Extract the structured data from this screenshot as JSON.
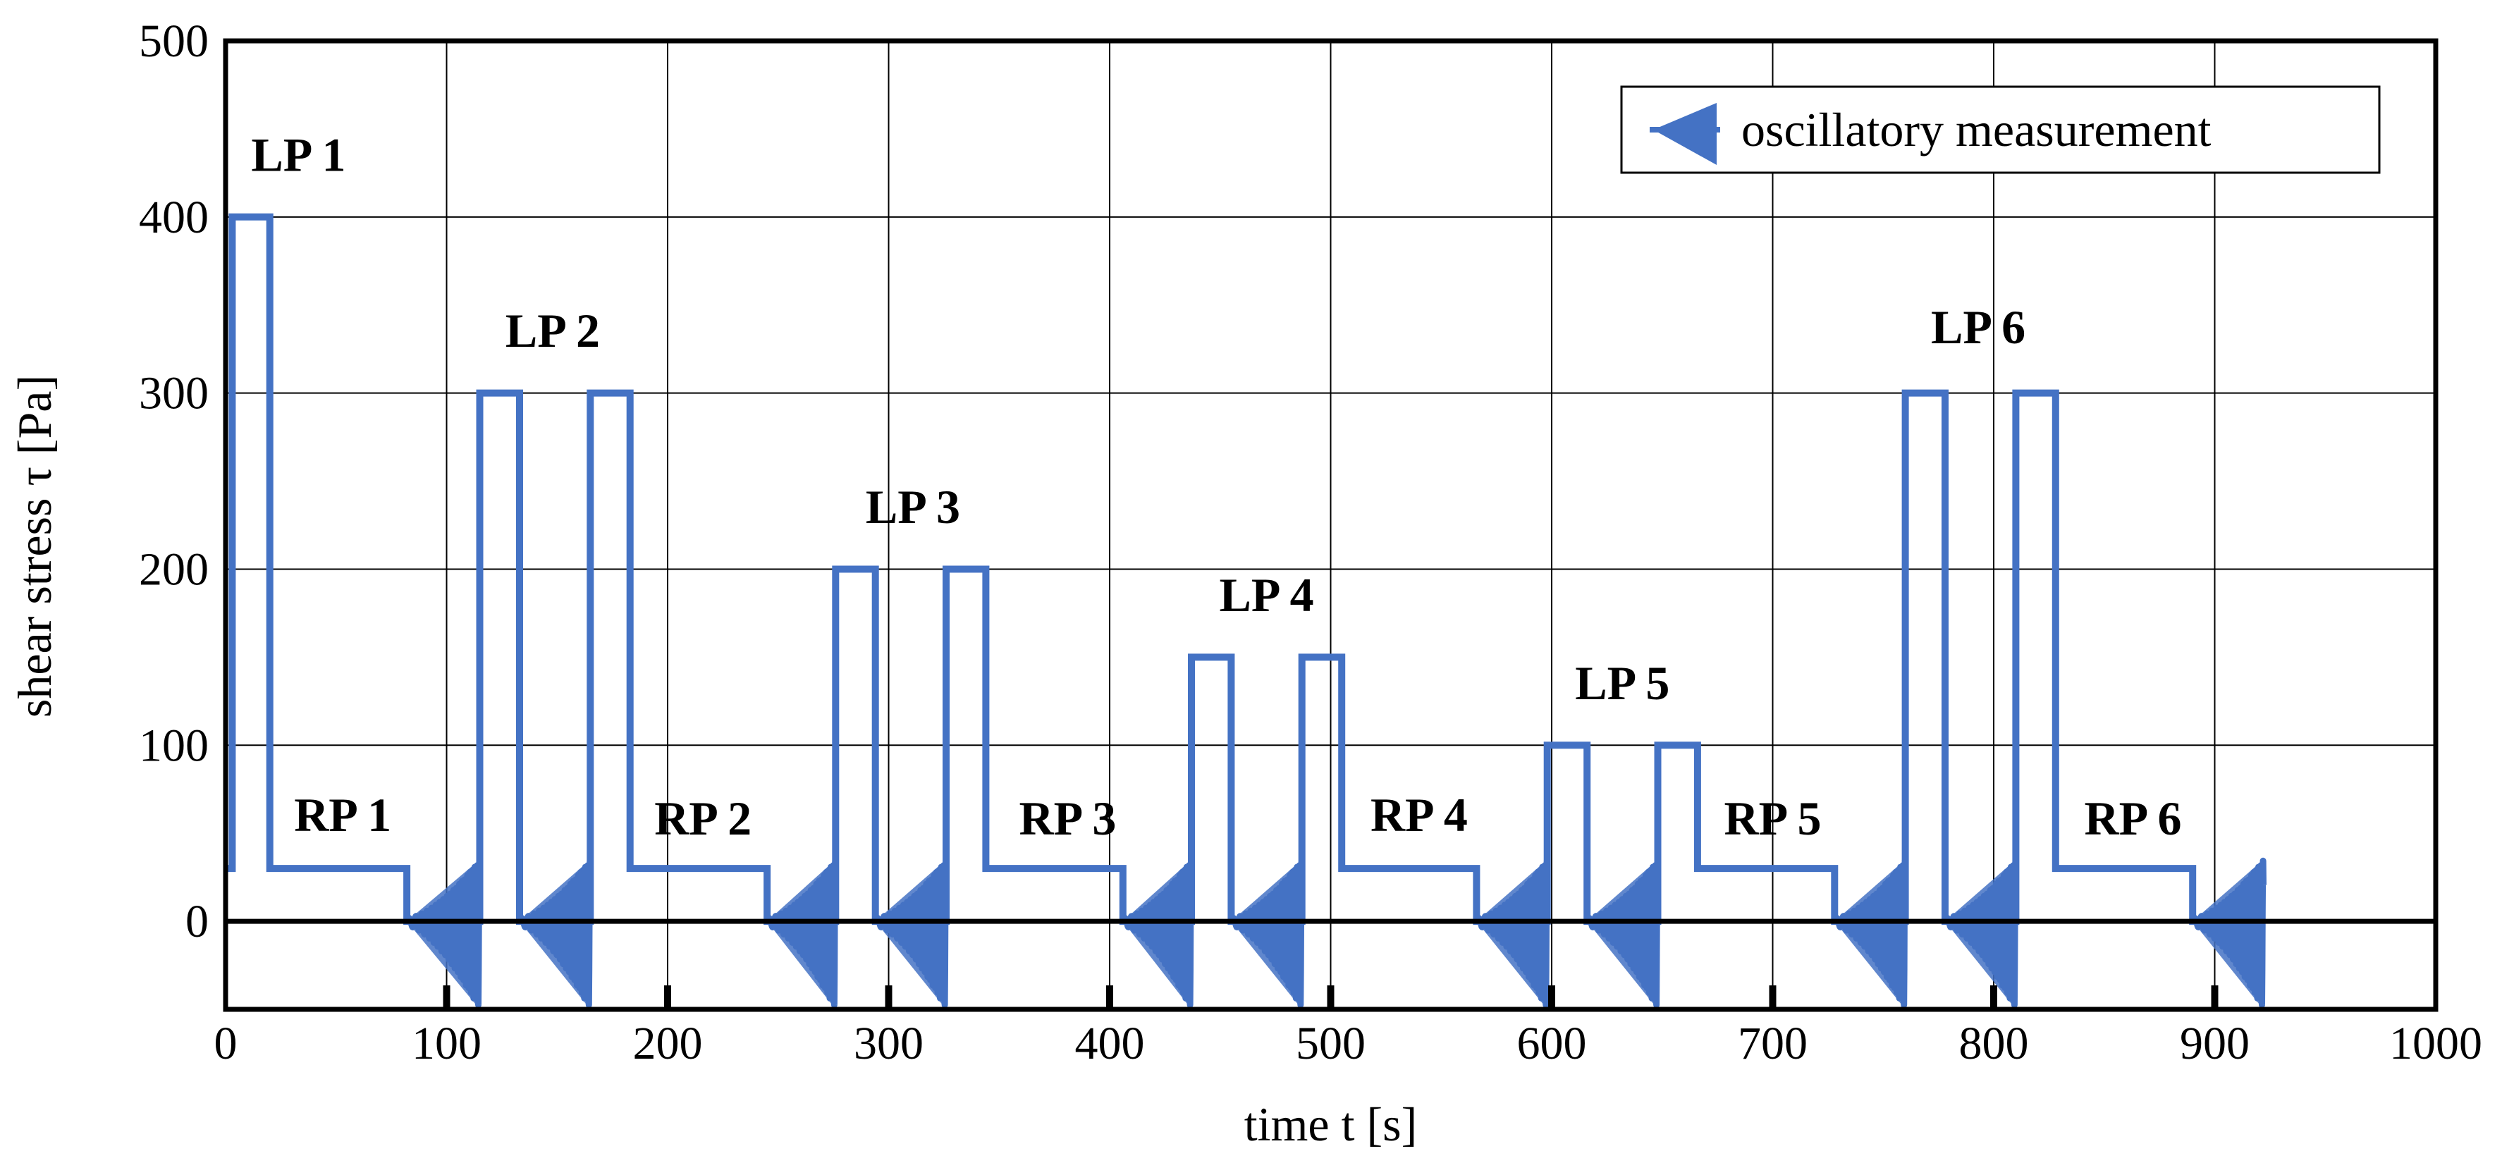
{
  "chart_data": {
    "type": "line",
    "title": "",
    "xlabel": "time t [s]",
    "ylabel": "shear stress τ [Pa]",
    "xlim": [
      0,
      1000
    ],
    "ylim": [
      -50,
      500
    ],
    "xticks": [
      0,
      100,
      200,
      300,
      400,
      500,
      600,
      700,
      800,
      900,
      1000
    ],
    "yticks": [
      0,
      100,
      200,
      300,
      400,
      500
    ],
    "grid": true,
    "legend": {
      "position": "top-right",
      "entries": [
        "oscillatory measurement"
      ]
    },
    "colors": {
      "series": "#4472C4",
      "axis": "#000000",
      "grid": "#000000"
    },
    "series": [
      {
        "name": "shear stress",
        "x": [
          0,
          3,
          3,
          20,
          20,
          82,
          82,
          115,
          115,
          133,
          133,
          165,
          165,
          183,
          183,
          245,
          245,
          276,
          276,
          294,
          294,
          326,
          326,
          344,
          344,
          406,
          406,
          437,
          437,
          455,
          455,
          487,
          487,
          505,
          505,
          566,
          566,
          598,
          598,
          616,
          616,
          648,
          648,
          666,
          666,
          728,
          728,
          760,
          760,
          778,
          778,
          810,
          810,
          828,
          828,
          890,
          890,
          922
        ],
        "y": [
          30,
          30,
          400,
          400,
          30,
          30,
          0,
          0,
          300,
          300,
          0,
          0,
          300,
          300,
          30,
          30,
          0,
          0,
          200,
          200,
          0,
          0,
          200,
          200,
          30,
          30,
          0,
          0,
          150,
          150,
          0,
          0,
          150,
          150,
          30,
          30,
          0,
          0,
          100,
          100,
          0,
          0,
          100,
          100,
          30,
          30,
          0,
          0,
          300,
          300,
          0,
          0,
          300,
          300,
          30,
          30,
          0,
          0
        ]
      }
    ],
    "oscillatory_segments": [
      {
        "start": 82,
        "end": 115
      },
      {
        "start": 133,
        "end": 165
      },
      {
        "start": 245,
        "end": 276
      },
      {
        "start": 294,
        "end": 326
      },
      {
        "start": 406,
        "end": 437
      },
      {
        "start": 455,
        "end": 487
      },
      {
        "start": 566,
        "end": 598
      },
      {
        "start": 616,
        "end": 648
      },
      {
        "start": 728,
        "end": 760
      },
      {
        "start": 778,
        "end": 810
      },
      {
        "start": 890,
        "end": 922
      }
    ],
    "annotations": [
      {
        "text": "LP 1",
        "x": 33,
        "y": 435
      },
      {
        "text": "LP 2",
        "x": 148,
        "y": 335
      },
      {
        "text": "LP 3",
        "x": 311,
        "y": 235
      },
      {
        "text": "LP 4",
        "x": 471,
        "y": 185
      },
      {
        "text": "LP 5",
        "x": 632,
        "y": 135
      },
      {
        "text": "LP 6",
        "x": 793,
        "y": 337
      },
      {
        "text": "RP 1",
        "x": 53,
        "y": 60
      },
      {
        "text": "RP 2",
        "x": 216,
        "y": 58
      },
      {
        "text": "RP 3",
        "x": 381,
        "y": 58
      },
      {
        "text": "RP 4",
        "x": 540,
        "y": 60
      },
      {
        "text": "RP 5",
        "x": 700,
        "y": 58
      },
      {
        "text": "RP 6",
        "x": 863,
        "y": 58
      }
    ]
  }
}
